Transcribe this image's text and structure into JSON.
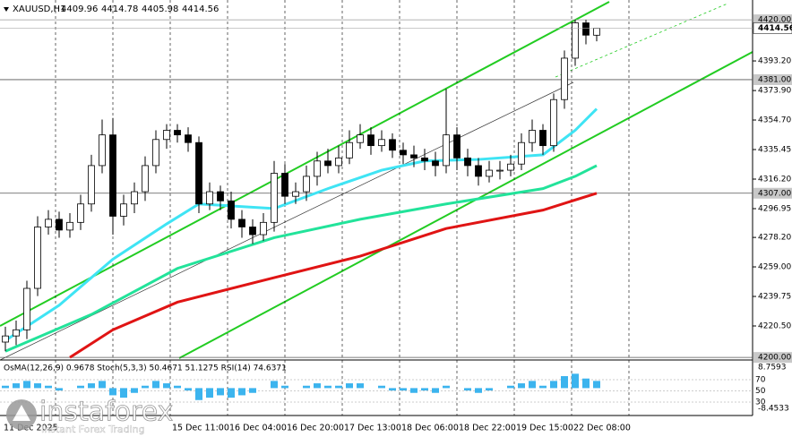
{
  "chart_data": {
    "type": "candlestick",
    "title": "XAUUSD,H1",
    "open": [
      4210,
      4214,
      4218,
      4245,
      4285,
      4290,
      4283,
      4288,
      4300,
      4325,
      4345,
      4292,
      4300,
      4308,
      4325,
      4342,
      4348,
      4345,
      4340,
      4300,
      4308,
      4302,
      4290,
      4285,
      4280,
      4288,
      4320,
      4305,
      4308,
      4318,
      4328,
      4325,
      4330,
      4340,
      4345,
      4338,
      4342,
      4335,
      4332,
      4330,
      4328,
      4325,
      4345,
      4330,
      4325,
      4318,
      4322,
      4322,
      4326,
      4340,
      4348,
      4338,
      4368,
      4395,
      4418,
      4409.96
    ],
    "high": [
      4220,
      4224,
      4250,
      4292,
      4296,
      4295,
      4294,
      4306,
      4332,
      4355,
      4356,
      4306,
      4314,
      4331,
      4348,
      4352,
      4352,
      4350,
      4344,
      4314,
      4312,
      4308,
      4296,
      4290,
      4294,
      4328,
      4326,
      4314,
      4325,
      4334,
      4336,
      4338,
      4348,
      4352,
      4350,
      4348,
      4346,
      4340,
      4338,
      4336,
      4334,
      4375,
      4350,
      4336,
      4330,
      4328,
      4328,
      4332,
      4346,
      4355,
      4352,
      4372,
      4400,
      4420,
      4420,
      4414.78
    ],
    "low": [
      4204,
      4208,
      4212,
      4240,
      4280,
      4278,
      4278,
      4283,
      4295,
      4320,
      4280,
      4286,
      4294,
      4302,
      4320,
      4336,
      4340,
      4334,
      4294,
      4296,
      4296,
      4284,
      4278,
      4274,
      4276,
      4282,
      4300,
      4300,
      4302,
      4312,
      4320,
      4320,
      4326,
      4336,
      4332,
      4334,
      4330,
      4326,
      4324,
      4322,
      4318,
      4320,
      4322,
      4318,
      4312,
      4314,
      4316,
      4318,
      4322,
      4334,
      4332,
      4334,
      4362,
      4390,
      4404,
      4405.98
    ],
    "close": [
      4214,
      4218,
      4245,
      4285,
      4290,
      4283,
      4288,
      4300,
      4325,
      4345,
      4292,
      4300,
      4308,
      4325,
      4342,
      4348,
      4345,
      4340,
      4300,
      4308,
      4302,
      4290,
      4285,
      4280,
      4288,
      4320,
      4305,
      4308,
      4318,
      4328,
      4325,
      4330,
      4340,
      4345,
      4338,
      4342,
      4335,
      4332,
      4330,
      4328,
      4325,
      4345,
      4330,
      4325,
      4318,
      4322,
      4322,
      4326,
      4340,
      4348,
      4338,
      4368,
      4395,
      4418,
      4410,
      4414.56
    ],
    "ma": [
      {
        "color": "#3fe4f4",
        "x": [
          0,
          5,
          10,
          15,
          18,
          25,
          30,
          35,
          39,
          44,
          50,
          53,
          55
        ],
        "values": [
          4211,
          4234,
          4264,
          4287,
          4300,
          4297,
          4310,
          4322,
          4328,
          4329,
          4332,
          4348,
          4362
        ]
      },
      {
        "color": "#22e39a",
        "x": [
          0,
          8,
          16,
          25,
          33,
          41,
          50,
          53,
          55
        ],
        "values": [
          4204,
          4228,
          4258,
          4278,
          4290,
          4300,
          4310,
          4318,
          4325
        ]
      },
      {
        "color": "#e01414",
        "x": [
          6,
          10,
          16,
          25,
          33,
          41,
          50,
          55
        ],
        "values": [
          4200,
          4218,
          4236,
          4252,
          4266,
          4284,
          4296,
          4307
        ]
      }
    ],
    "ylim": [
      4199.5,
      4432.9
    ],
    "yticks": [
      {
        "value": 4393.2,
        "label": "4393.20"
      },
      {
        "value": 4373.9,
        "label": "4373.90"
      },
      {
        "value": 4354.7,
        "label": "4354.70"
      },
      {
        "value": 4335.45,
        "label": "4335.45"
      },
      {
        "value": 4316.2,
        "label": "4316.20"
      },
      {
        "value": 4296.95,
        "label": "4296.95"
      },
      {
        "value": 4278.2,
        "label": "4278.20"
      },
      {
        "value": 4259,
        "label": "4259.00"
      },
      {
        "value": 4239.75,
        "label": "4239.75"
      },
      {
        "value": 4220.5,
        "label": "4220.50"
      }
    ],
    "levels": [
      {
        "value": 4420,
        "label": "4420.00"
      },
      {
        "value": 4381,
        "label": "4381.00"
      },
      {
        "value": 4307,
        "label": "4307.00"
      },
      {
        "value": 4200,
        "label": "4200.00"
      }
    ],
    "time_labels": [
      "11 Dec 2025",
      "15 Dec 11:00",
      "16 Dec 04:00",
      "16 Dec 20:00",
      "17 Dec 13:00",
      "18 Dec 06:00",
      "18 Dec 22:00",
      "19 Dec 15:00",
      "22 Dec 08:00"
    ],
    "indicator": {
      "label": "OsMA(12,26,9) 0.9678 Stoch(5,3,3) 50.4671 51.1275 RSI(14) 74.6371",
      "color": "#3cb4ee",
      "values": [
        1,
        2,
        3,
        2,
        1,
        -1,
        0,
        1,
        2,
        3,
        -3,
        -4,
        -2,
        1,
        3,
        2,
        1,
        -1,
        -5,
        -4,
        -3,
        -4,
        -3,
        -2,
        0,
        3,
        1,
        0,
        1,
        2,
        1,
        1,
        2,
        2,
        0,
        1,
        -1,
        -1,
        -2,
        -1,
        -2,
        1,
        0,
        -1,
        -2,
        -1,
        0,
        1,
        2,
        3,
        1,
        3,
        5,
        6,
        4,
        3
      ],
      "ylim": [
        -10.7,
        11.0
      ],
      "yticks": [
        8.7593,
        -8.4533
      ],
      "levels": [
        70,
        50,
        30
      ],
      "levels_lim": [
        9.2,
        102
      ]
    },
    "brand": "instaforex",
    "slogan": "Instant Forex Trading"
  }
}
